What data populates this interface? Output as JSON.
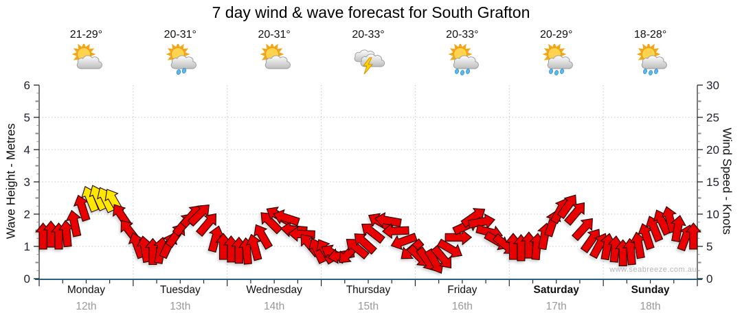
{
  "title": "7 day wind & wave forecast for South Grafton",
  "watermark": "www.seabreeze.com.au",
  "days": [
    {
      "name": "Monday",
      "date": "12th",
      "temp": "21-29°",
      "icon": "sun-cloud",
      "drops": 0,
      "bold": false
    },
    {
      "name": "Tuesday",
      "date": "13th",
      "temp": "20-31°",
      "icon": "sun-cloud-rain",
      "drops": 2,
      "bold": false
    },
    {
      "name": "Wednesday",
      "date": "14th",
      "temp": "20-31°",
      "icon": "sun-cloud",
      "drops": 0,
      "bold": false
    },
    {
      "name": "Thursday",
      "date": "15th",
      "temp": "20-33°",
      "icon": "storm",
      "drops": 0,
      "bold": false
    },
    {
      "name": "Friday",
      "date": "16th",
      "temp": "20-33°",
      "icon": "sun-cloud-rain",
      "drops": 3,
      "bold": false
    },
    {
      "name": "Saturday",
      "date": "17th",
      "temp": "20-29°",
      "icon": "sun-cloud-rain",
      "drops": 3,
      "bold": true
    },
    {
      "name": "Sunday",
      "date": "18th",
      "temp": "18-28°",
      "icon": "sun-cloud-rain",
      "drops": 3,
      "bold": true
    }
  ],
  "chart_data": {
    "type": "wind-arrow-series",
    "title": "7 day wind & wave forecast for South Grafton",
    "left_axis": {
      "label": "Wave Height - Metres",
      "ticks": [
        0,
        1,
        2,
        3,
        4,
        5,
        6
      ],
      "range": [
        0,
        6
      ]
    },
    "right_axis": {
      "label": "Wind Speed - Knots",
      "ticks": [
        0,
        5,
        10,
        15,
        20,
        25,
        30
      ],
      "range": [
        0,
        30
      ]
    },
    "x_categories": [
      "Monday 12th",
      "Tuesday 13th",
      "Wednesday 14th",
      "Thursday 15th",
      "Friday 16th",
      "Saturday 17th",
      "Sunday 18th"
    ],
    "points_per_day": 12,
    "yellow_threshold_knots": 12,
    "arrow_colors": {
      "under_threshold": "#e90000",
      "over_threshold": "#ffe800"
    },
    "grid": {
      "h_lines_metres": [
        1,
        2,
        3,
        4,
        5
      ],
      "v_lines": "day-boundaries"
    },
    "wind_speed_knots": [
      6.6,
      6.9,
      6.6,
      7.0,
      8.6,
      11.0,
      12.4,
      12.6,
      12.3,
      12.1,
      9.8,
      7.4,
      5.2,
      4.6,
      4.2,
      4.4,
      5.2,
      6.8,
      8.5,
      9.8,
      10.0,
      8.5,
      6.2,
      5.0,
      4.6,
      4.4,
      4.3,
      4.9,
      6.6,
      8.8,
      9.8,
      9.4,
      7.6,
      6.9,
      5.3,
      4.4,
      4.3,
      3.9,
      3.6,
      3.9,
      4.8,
      5.6,
      7.2,
      8.8,
      9.0,
      7.4,
      5.8,
      4.4,
      3.4,
      2.9,
      2.6,
      3.2,
      4.6,
      6.4,
      8.2,
      9.6,
      8.8,
      7.2,
      5.8,
      5.2,
      5.0,
      4.8,
      5.2,
      5.0,
      6.6,
      8.6,
      10.6,
      11.3,
      10.2,
      7.8,
      6.0,
      5.2,
      5.0,
      4.6,
      4.0,
      4.2,
      5.2,
      6.6,
      7.8,
      8.8,
      9.2,
      7.8,
      6.4,
      6.6
    ],
    "wind_dir_deg": [
      0,
      0,
      0,
      -5,
      -12,
      -18,
      -22,
      -24,
      -26,
      -30,
      -34,
      -38,
      -20,
      -10,
      0,
      10,
      25,
      35,
      40,
      42,
      45,
      40,
      15,
      0,
      0,
      0,
      -5,
      -15,
      -30,
      -45,
      -60,
      -72,
      -85,
      -88,
      -40,
      -25,
      -30,
      -60,
      -100,
      -135,
      -50,
      -48,
      -52,
      -60,
      -80,
      -92,
      -110,
      -130,
      135,
      145,
      150,
      140,
      120,
      90,
      65,
      55,
      80,
      105,
      120,
      130,
      0,
      0,
      0,
      5,
      10,
      18,
      28,
      35,
      40,
      42,
      35,
      28,
      10,
      5,
      0,
      -5,
      -10,
      -18,
      -22,
      -25,
      -15,
      10,
      20,
      0
    ]
  }
}
